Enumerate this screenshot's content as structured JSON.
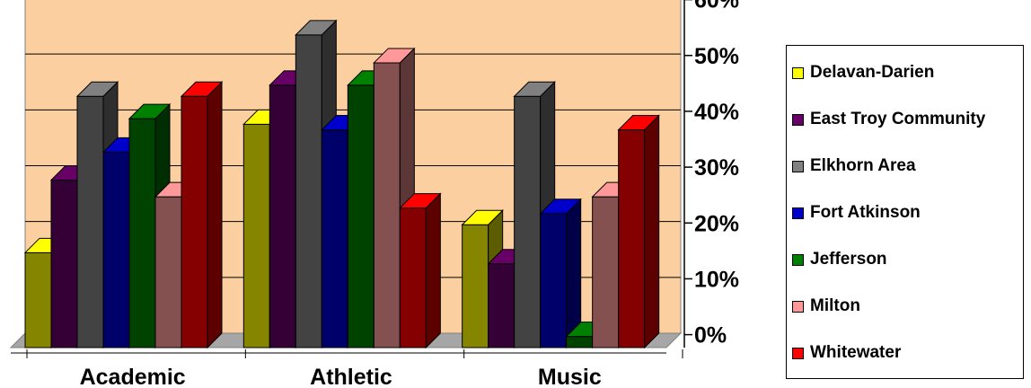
{
  "chart_data": {
    "type": "bar",
    "categories": [
      "Academic",
      "Athletic",
      "Music"
    ],
    "ylim": [
      0,
      60
    ],
    "ytick_labels": [
      "0%",
      "10%",
      "20%",
      "30%",
      "40%",
      "50%",
      "60%"
    ],
    "grid": true,
    "legend_position": "right",
    "series": [
      {
        "name": "Delavan-Darien",
        "color": "#ffff00",
        "values": [
          17,
          40,
          22
        ]
      },
      {
        "name": "East Troy Community",
        "color": "#660066",
        "values": [
          30,
          47,
          15
        ]
      },
      {
        "name": "Elkhorn Area",
        "color": "#808080",
        "values": [
          45,
          56,
          45
        ]
      },
      {
        "name": "Fort Atkinson",
        "color": "#0000cc",
        "values": [
          35,
          39,
          24
        ]
      },
      {
        "name": "Jefferson",
        "color": "#008000",
        "values": [
          41,
          47,
          2
        ]
      },
      {
        "name": "Milton",
        "color": "#ff9999",
        "values": [
          27,
          51,
          27
        ]
      },
      {
        "name": "Whitewater",
        "color": "#ff0000",
        "values": [
          45,
          25,
          39
        ]
      }
    ]
  },
  "colors": {
    "plot_background": "#fbcf9f",
    "floor": "#a6a6a6"
  }
}
